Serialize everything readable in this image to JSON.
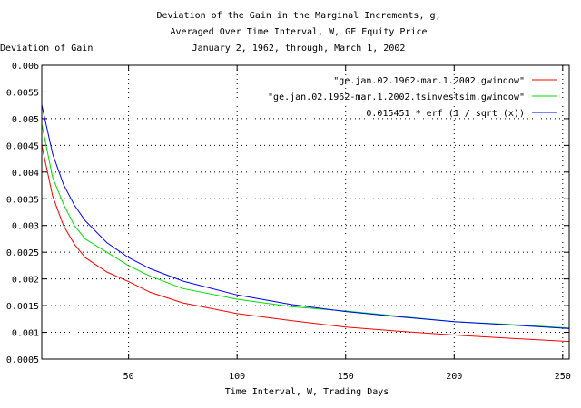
{
  "chart_data": {
    "type": "line",
    "title_lines": [
      "Deviation of the Gain in the Marginal Increments, g,",
      "Averaged Over Time Interval, W, GE Equity Price",
      "January 2, 1962, through, March 1, 2002"
    ],
    "xlabel": "Time Interval, W, Trading Days",
    "ylabel": "Deviation of Gain",
    "xlim": [
      10,
      253
    ],
    "ylim": [
      0.0005,
      0.006
    ],
    "xticks": [
      50,
      100,
      150,
      200,
      250
    ],
    "yticks": [
      0.0005,
      0.001,
      0.0015,
      0.002,
      0.0025,
      0.003,
      0.0035,
      0.004,
      0.0045,
      0.005,
      0.0055,
      0.006
    ],
    "xtick_labels": [
      "50",
      "100",
      "150",
      "200",
      "250"
    ],
    "ytick_labels": [
      "0.0005",
      "0.001",
      "0.0015",
      "0.002",
      "0.0025",
      "0.003",
      "0.0035",
      "0.004",
      "0.0045",
      "0.005",
      "0.0055",
      "0.006"
    ],
    "grid": true,
    "legend_position": "top-right",
    "series": [
      {
        "name": "\"ge.jan.02.1962-mar.1.2002.gwindow\"",
        "color": "#ff0000",
        "x": [
          10,
          15,
          20,
          25,
          30,
          40,
          50,
          60,
          75,
          100,
          125,
          150,
          175,
          200,
          225,
          253
        ],
        "y": [
          0.0045,
          0.00355,
          0.003,
          0.00265,
          0.0024,
          0.00213,
          0.00195,
          0.00175,
          0.00155,
          0.00135,
          0.00122,
          0.0011,
          0.00102,
          0.00095,
          0.00089,
          0.00083
        ]
      },
      {
        "name": "\"ge.jan.02.1962-mar.1.2002.tsinvestsim.gwindow\"",
        "color": "#00dd00",
        "x": [
          10,
          15,
          20,
          25,
          30,
          40,
          50,
          60,
          75,
          100,
          125,
          150,
          175,
          200,
          225,
          253
        ],
        "y": [
          0.0049,
          0.0039,
          0.0034,
          0.003,
          0.00275,
          0.0025,
          0.00225,
          0.00205,
          0.00182,
          0.00162,
          0.00148,
          0.0014,
          0.0013,
          0.0012,
          0.00115,
          0.00108
        ]
      },
      {
        "name": "0.015451 * erf (1 / sqrt (x))",
        "color": "#0000ff",
        "x": [
          10,
          15,
          20,
          25,
          30,
          40,
          50,
          60,
          75,
          100,
          125,
          150,
          175,
          200,
          225,
          253
        ],
        "y": [
          0.00526,
          0.00434,
          0.00377,
          0.00338,
          0.00309,
          0.00268,
          0.0024,
          0.00219,
          0.00196,
          0.0017,
          0.00152,
          0.00139,
          0.00129,
          0.0012,
          0.00114,
          0.00107
        ]
      }
    ]
  }
}
